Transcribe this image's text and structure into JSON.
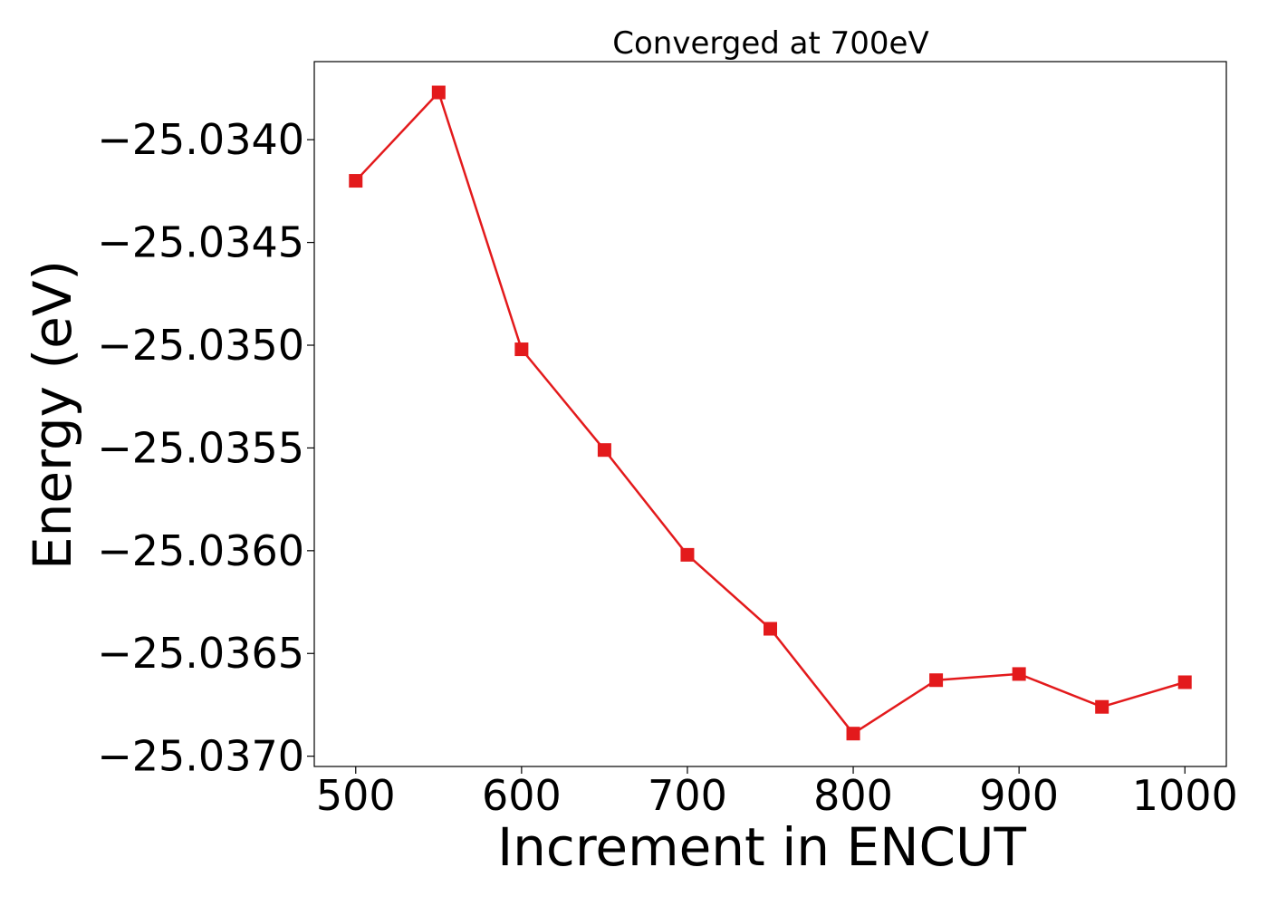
{
  "chart_data": {
    "type": "line",
    "title": "Converged at 700eV",
    "xlabel": "Increment in ENCUT",
    "ylabel": "Energy (eV)",
    "x": [
      500,
      550,
      600,
      650,
      700,
      750,
      800,
      850,
      900,
      950,
      1000
    ],
    "series": [
      {
        "values": [
          -25.0342,
          -25.03377,
          -25.03502,
          -25.03551,
          -25.03602,
          -25.03638,
          -25.03689,
          -25.03663,
          -25.0366,
          -25.03676,
          -25.03664
        ],
        "color": "#e31a1c",
        "marker": "square"
      }
    ],
    "xticks": [
      "500",
      "600",
      "700",
      "800",
      "900",
      "1000"
    ],
    "xtick_values": [
      500,
      600,
      700,
      800,
      900,
      1000
    ],
    "yticks": [
      "−25.0340",
      "−25.0345",
      "−25.0350",
      "−25.0355",
      "−25.0360",
      "−25.0365",
      "−25.0370"
    ],
    "ytick_values": [
      -25.034,
      -25.0345,
      -25.035,
      -25.0355,
      -25.036,
      -25.0365,
      -25.037
    ],
    "xlim": [
      475,
      1025
    ],
    "ylim": [
      -25.03705,
      -25.03362
    ],
    "grid": false,
    "legend": "none"
  }
}
